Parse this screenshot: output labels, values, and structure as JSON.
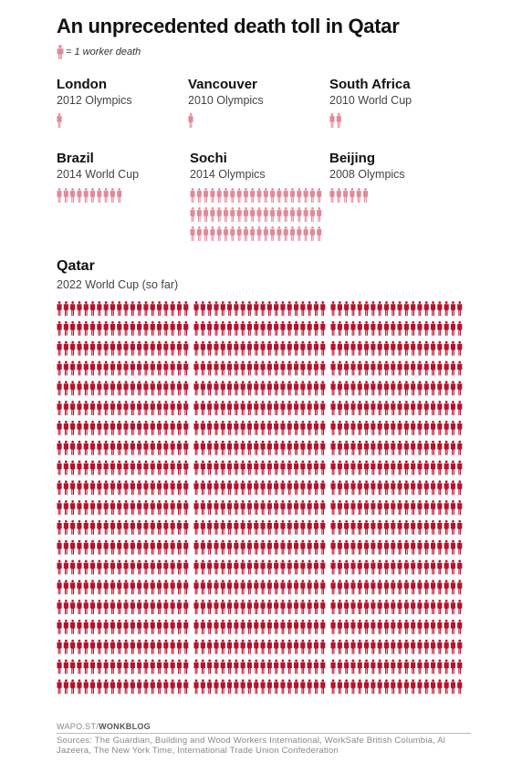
{
  "title": "An unprecedented death toll in Qatar",
  "legend": {
    "text": "= 1 worker death",
    "icon": "person-icon"
  },
  "colors": {
    "small": "#e0899a",
    "qatar": "#b5122b"
  },
  "chart_data": {
    "type": "pictogram",
    "unit": "1 worker death",
    "series": [
      {
        "name": "London",
        "event": "2012 Olympics",
        "value": 1
      },
      {
        "name": "Vancouver",
        "event": "2010 Olympics",
        "value": 1
      },
      {
        "name": "South Africa",
        "event": "2010 World Cup",
        "value": 2
      },
      {
        "name": "Brazil",
        "event": "2014 World Cup",
        "value": 10
      },
      {
        "name": "Sochi",
        "event": "2014 Olympics",
        "value": 60
      },
      {
        "name": "Beijing",
        "event": "2008 Olympics",
        "value": 6
      },
      {
        "name": "Qatar",
        "event": "2022 World Cup (so far)",
        "value": 1200
      }
    ]
  },
  "source": {
    "prefix": "WAPO.ST/",
    "brand": "WONKBLOG"
  },
  "credits": "Sources: The Guardian, Building and Wood Workers International, WorkSafe British Columbia, Al Jazeera, The New York Time, International Trade Union Confederation"
}
